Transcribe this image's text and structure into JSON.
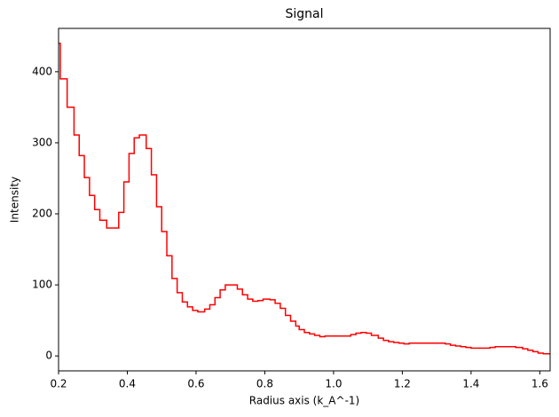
{
  "chart_data": {
    "type": "step",
    "title": "Signal",
    "x_label": "Radius axis (k_A^-1)",
    "y_label": "Intensity",
    "color": "#ff0000",
    "x": [
      0.2,
      0.205,
      0.225,
      0.245,
      0.26,
      0.275,
      0.29,
      0.305,
      0.32,
      0.34,
      0.375,
      0.39,
      0.405,
      0.42,
      0.435,
      0.455,
      0.47,
      0.485,
      0.5,
      0.515,
      0.53,
      0.545,
      0.56,
      0.575,
      0.59,
      0.605,
      0.625,
      0.64,
      0.655,
      0.67,
      0.685,
      0.72,
      0.735,
      0.75,
      0.765,
      0.78,
      0.795,
      0.815,
      0.83,
      0.845,
      0.86,
      0.875,
      0.89,
      0.9,
      0.915,
      0.93,
      0.945,
      0.96,
      0.975,
      1.05,
      1.065,
      1.08,
      1.095,
      1.11,
      1.13,
      1.145,
      1.16,
      1.175,
      1.19,
      1.205,
      1.22,
      1.325,
      1.34,
      1.355,
      1.37,
      1.385,
      1.4,
      1.455,
      1.47,
      1.49,
      1.53,
      1.55,
      1.565,
      1.58,
      1.595,
      1.61
    ],
    "values": [
      440,
      390,
      350,
      311,
      282,
      251,
      226,
      206,
      191,
      180,
      202,
      245,
      285,
      307,
      311,
      292,
      255,
      210,
      175,
      141,
      109,
      89,
      76,
      69,
      64,
      62,
      66,
      72,
      82,
      93,
      100,
      94,
      86,
      80,
      77,
      78,
      80,
      79,
      74,
      67,
      57,
      49,
      42,
      37,
      33,
      31,
      29,
      27,
      28,
      30,
      32,
      33,
      32,
      29,
      25,
      22,
      20,
      19,
      18,
      17,
      18,
      17,
      15,
      14,
      13,
      12,
      11,
      12,
      13,
      13,
      12,
      10,
      8,
      6,
      4,
      3
    ],
    "xlim": [
      0.2,
      1.63
    ],
    "ylim": [
      -21,
      461
    ],
    "xticks": [
      0.2,
      0.4,
      0.6,
      0.8,
      {
        "value": 1,
        "label": "1.0"
      },
      1.2,
      1.4,
      1.6
    ],
    "yticks": [
      0,
      100,
      200,
      300,
      400
    ]
  }
}
